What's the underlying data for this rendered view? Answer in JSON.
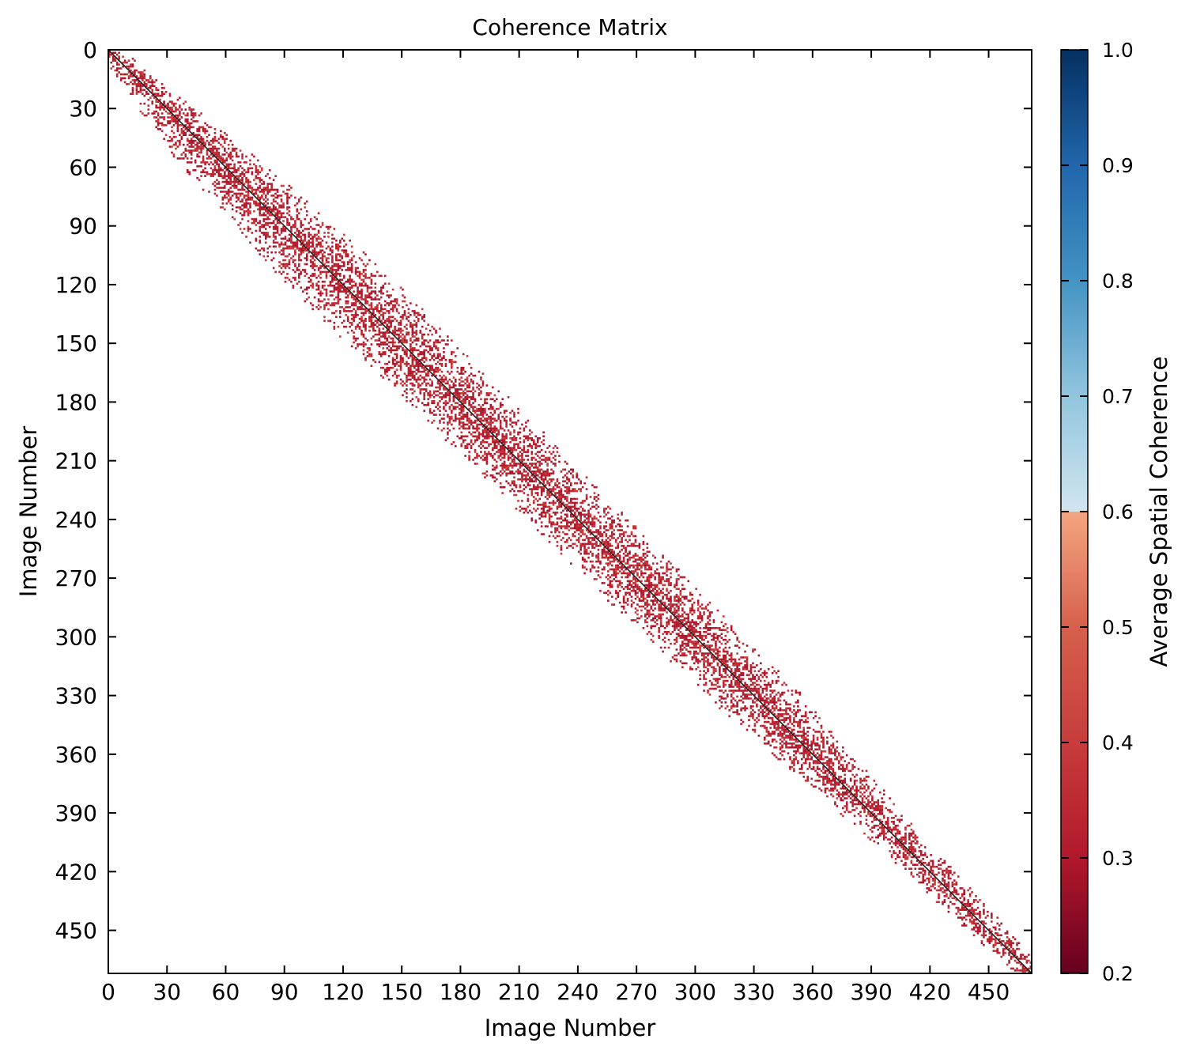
{
  "chart_data": {
    "type": "heatmap",
    "title": "Coherence Matrix",
    "xlabel": "Image Number",
    "ylabel": "Image Number",
    "n_images": 472,
    "xlim": [
      0,
      472
    ],
    "ylim": [
      472,
      0
    ],
    "x_ticks": [
      0,
      30,
      60,
      90,
      120,
      150,
      180,
      210,
      240,
      270,
      300,
      330,
      360,
      390,
      420,
      450
    ],
    "y_ticks": [
      0,
      30,
      60,
      90,
      120,
      150,
      180,
      210,
      240,
      270,
      300,
      330,
      360,
      390,
      420,
      450
    ],
    "diagonal_value": 1.0,
    "band_half_width_by_image": [
      [
        0,
        6
      ],
      [
        50,
        20
      ],
      [
        120,
        28
      ],
      [
        200,
        26
      ],
      [
        260,
        26
      ],
      [
        330,
        24
      ],
      [
        400,
        14
      ],
      [
        450,
        10
      ],
      [
        472,
        8
      ]
    ],
    "band_coherence_range": [
      0.35,
      0.5
    ],
    "grid": false,
    "colorbar": {
      "label": "Average Spatial Coherence",
      "vmin": 0.2,
      "vmax": 1.0,
      "ticks": [
        "0.2",
        "0.3",
        "0.4",
        "0.5",
        "0.6",
        "0.7",
        "0.8",
        "0.9",
        "1.0"
      ],
      "colormap": "RdBu",
      "gap_value": 0.7
    }
  }
}
